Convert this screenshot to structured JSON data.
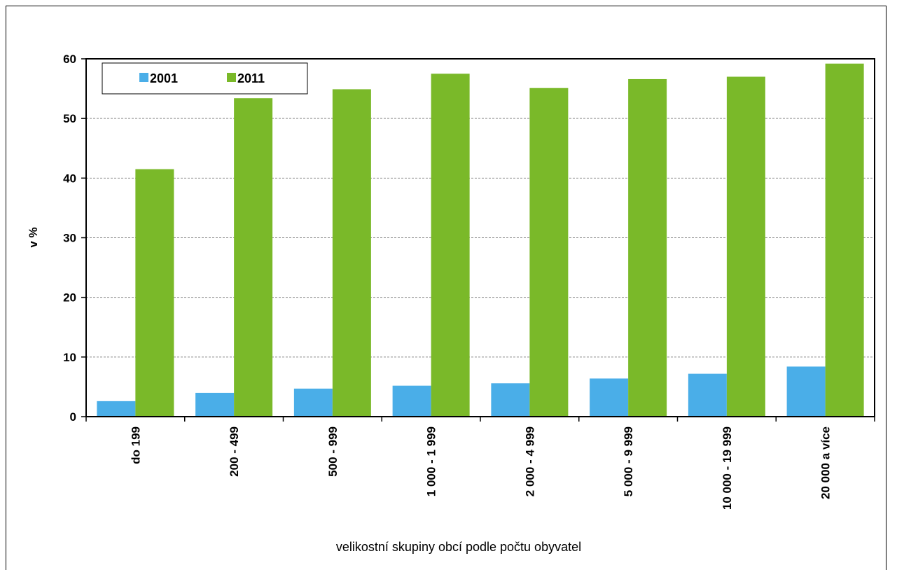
{
  "chart_data": {
    "type": "bar",
    "ylabel": "v %",
    "xlabel": "velikostní skupiny obcí podle počtu obyvatel",
    "ylim": [
      0,
      60
    ],
    "yticks": [
      0,
      10,
      20,
      30,
      40,
      50,
      60
    ],
    "grid": true,
    "legend_position": "top-left",
    "categories": [
      "do 199",
      "200 - 499",
      "500 - 999",
      "1 000 - 1 999",
      "2 000 - 4 999",
      "5 000 - 9 999",
      "10 000 - 19 999",
      "20 000 a více"
    ],
    "series": [
      {
        "name": "2001",
        "color": "#4aaee8",
        "values": [
          2.6,
          4.0,
          4.7,
          5.2,
          5.6,
          6.4,
          7.2,
          8.4
        ]
      },
      {
        "name": "2011",
        "color": "#7ab929",
        "values": [
          41.5,
          53.4,
          54.9,
          57.5,
          55.1,
          56.6,
          57.0,
          59.2
        ]
      }
    ]
  }
}
